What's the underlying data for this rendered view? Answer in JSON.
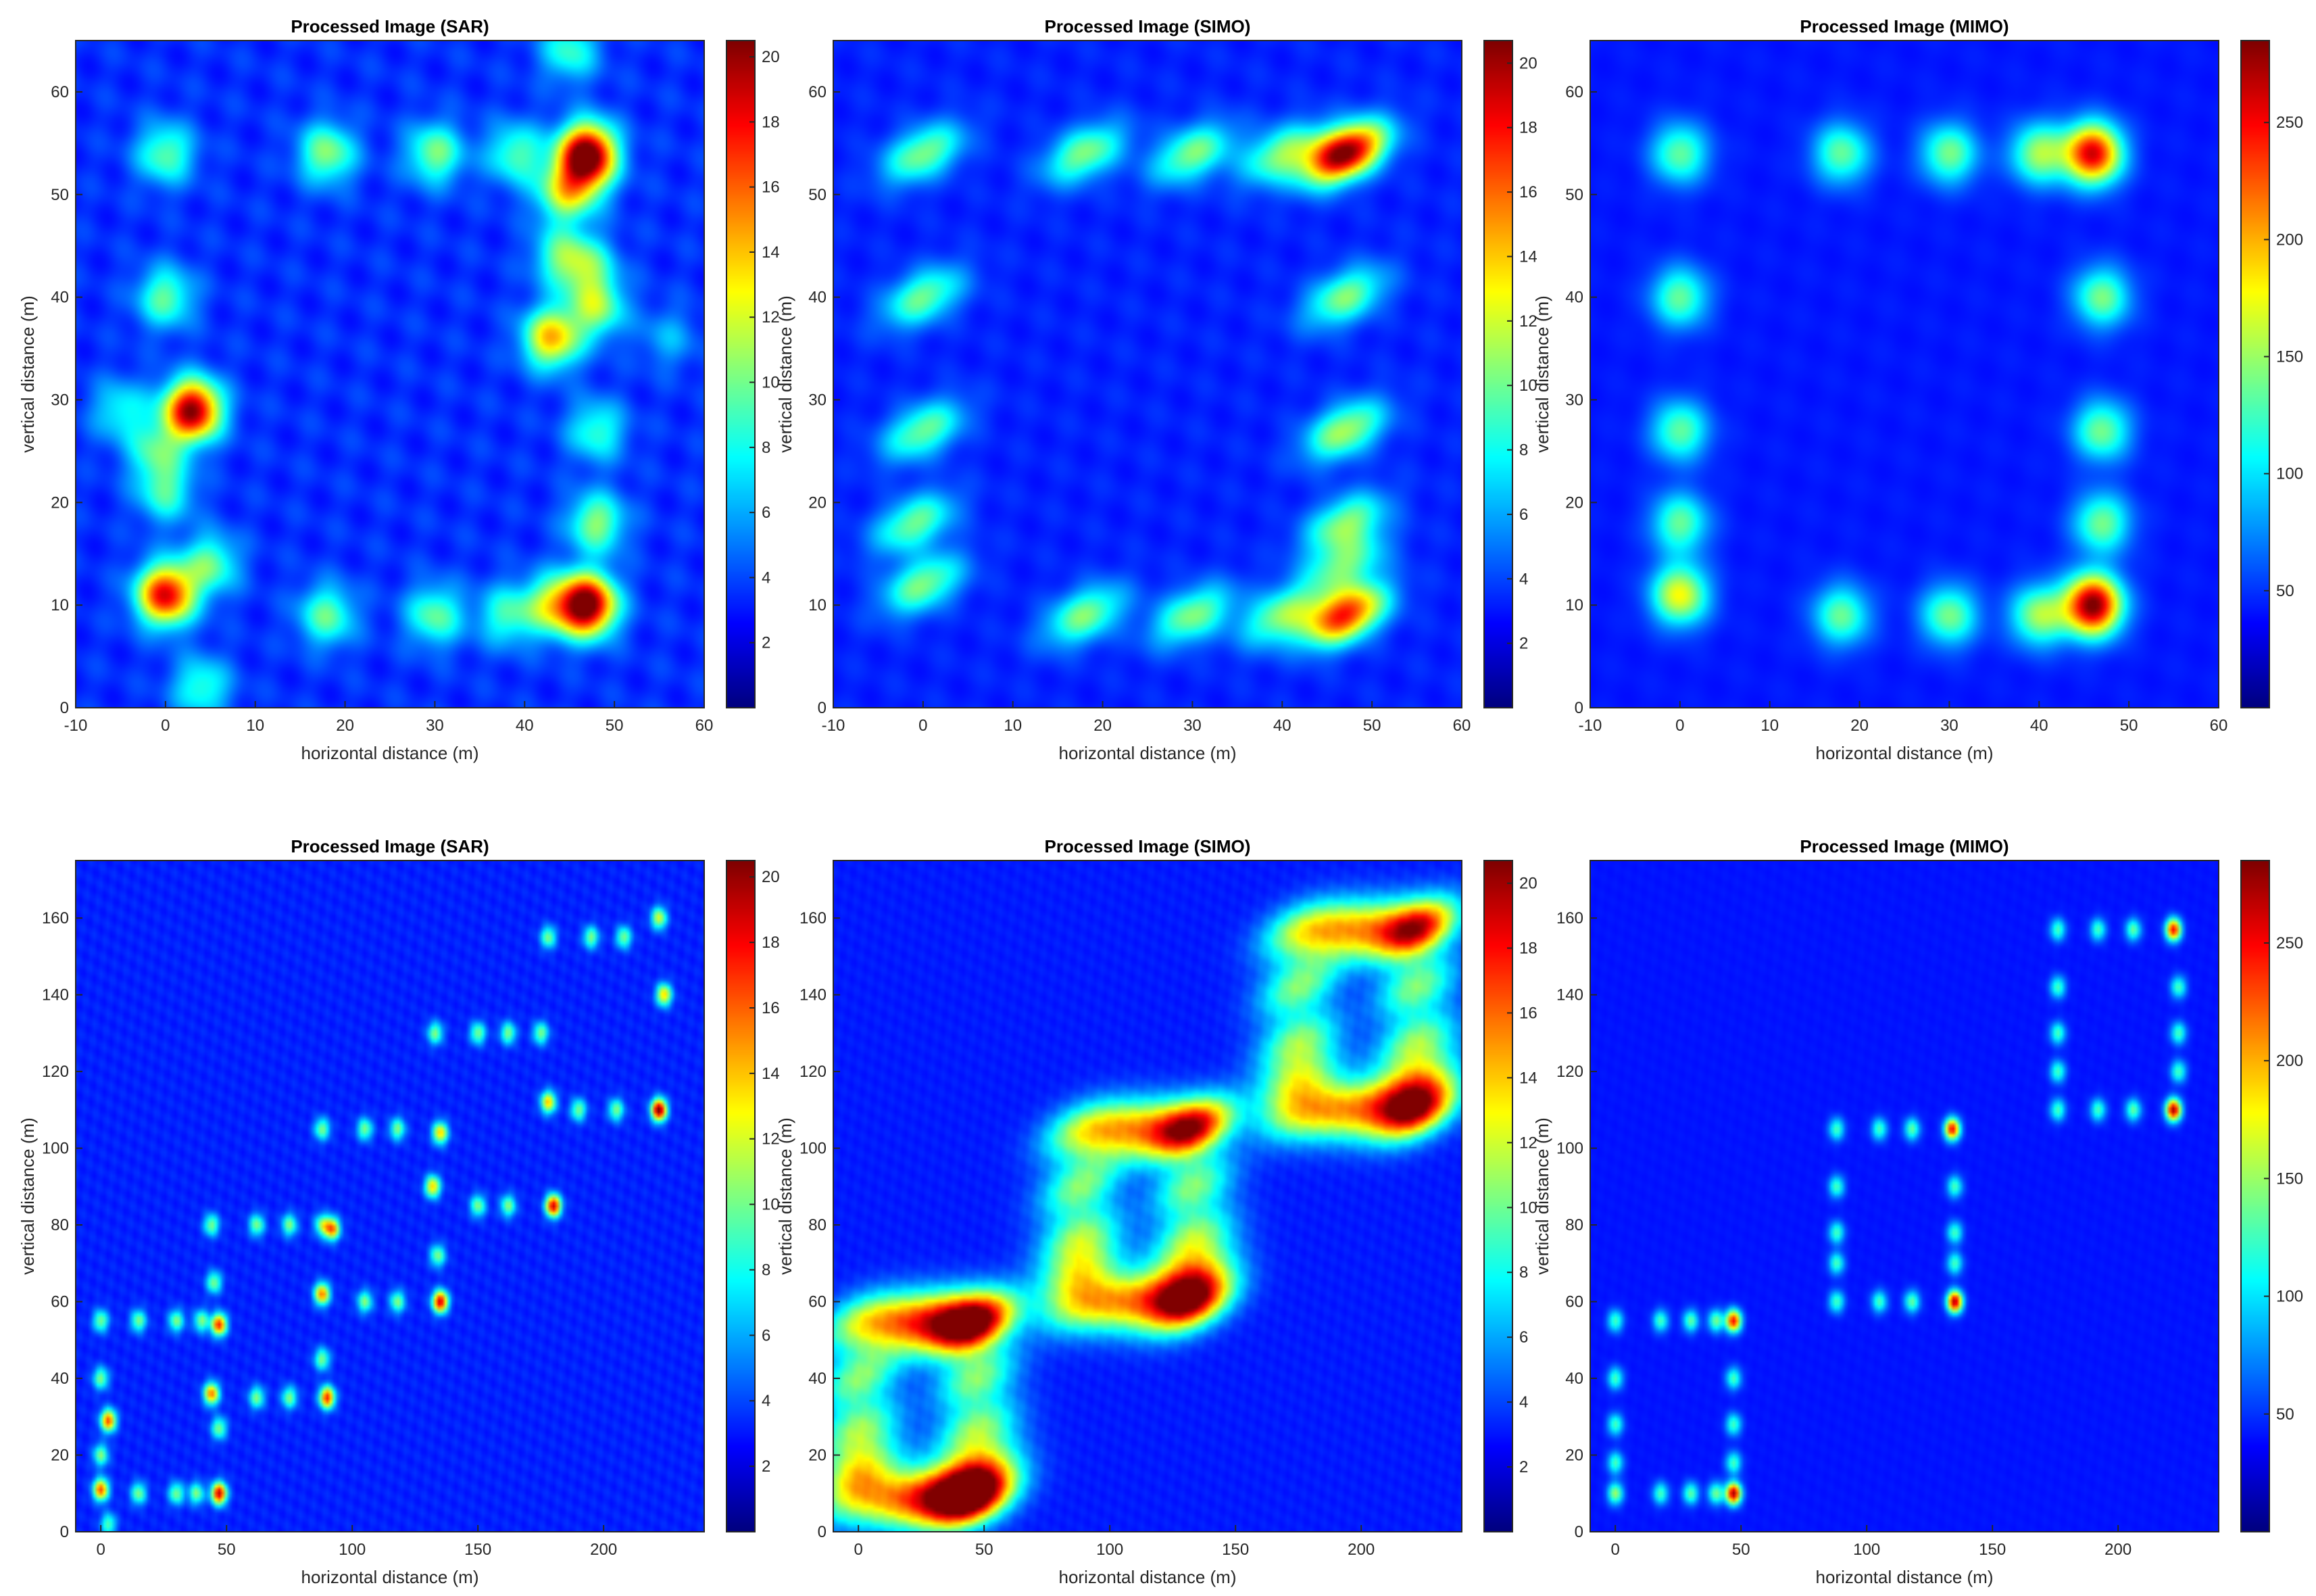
{
  "chart_data": [
    {
      "type": "heatmap",
      "title": "Processed Image (SAR)",
      "xlabel": "horizontal distance (m)",
      "ylabel": "vertical distance (m)",
      "xlim": [
        -10,
        60
      ],
      "ylim": [
        0,
        65
      ],
      "xticks": [
        -10,
        0,
        10,
        20,
        30,
        40,
        50,
        60
      ],
      "yticks": [
        0,
        10,
        20,
        30,
        40,
        50,
        60
      ],
      "colormap": "jet",
      "colorbar": {
        "min": 0,
        "max": 20.5,
        "ticks": [
          2,
          4,
          6,
          8,
          10,
          12,
          14,
          16,
          18,
          20
        ]
      },
      "spot_shape": "round",
      "points": [
        [
          0,
          54,
          0.35
        ],
        [
          18,
          54,
          0.4
        ],
        [
          30,
          54,
          0.38
        ],
        [
          39,
          54,
          0.33
        ],
        [
          47,
          54,
          1.0
        ],
        [
          46,
          51,
          0.3
        ],
        [
          44,
          50,
          0.3
        ],
        [
          0,
          40,
          0.35
        ],
        [
          43,
          36,
          0.6
        ],
        [
          48,
          39,
          0.4
        ],
        [
          44,
          44,
          0.3
        ],
        [
          47,
          43,
          0.3
        ],
        [
          -5,
          29,
          0.25
        ],
        [
          3,
          29,
          0.95
        ],
        [
          -1,
          25,
          0.3
        ],
        [
          48,
          27,
          0.3
        ],
        [
          0,
          21,
          0.3
        ],
        [
          48,
          18,
          0.4
        ],
        [
          0,
          11,
          0.85
        ],
        [
          5,
          14,
          0.35
        ],
        [
          18,
          9,
          0.35
        ],
        [
          30,
          9,
          0.35
        ],
        [
          38,
          9,
          0.3
        ],
        [
          47,
          10,
          1.0
        ],
        [
          43,
          10,
          0.4
        ],
        [
          4,
          2,
          0.3
        ],
        [
          45,
          64,
          0.3
        ],
        [
          56,
          36,
          0.15
        ]
      ],
      "noise": 0.2
    },
    {
      "type": "heatmap",
      "title": "Processed Image (SIMO)",
      "xlabel": "horizontal distance (m)",
      "ylabel": "vertical distance (m)",
      "xlim": [
        -10,
        60
      ],
      "ylim": [
        0,
        65
      ],
      "xticks": [
        -10,
        0,
        10,
        20,
        30,
        40,
        50,
        60
      ],
      "yticks": [
        0,
        10,
        20,
        30,
        40,
        50,
        60
      ],
      "colormap": "jet",
      "colorbar": {
        "min": 0,
        "max": 20.7,
        "ticks": [
          2,
          4,
          6,
          8,
          10,
          12,
          14,
          16,
          18,
          20
        ]
      },
      "spot_shape": "elongated",
      "points": [
        [
          0,
          54,
          0.4
        ],
        [
          18,
          54,
          0.4
        ],
        [
          30,
          54,
          0.4
        ],
        [
          40,
          54,
          0.4
        ],
        [
          47,
          54,
          1.0
        ],
        [
          0,
          40,
          0.38
        ],
        [
          47,
          40,
          0.4
        ],
        [
          0,
          27,
          0.38
        ],
        [
          47,
          27,
          0.45
        ],
        [
          -1,
          18,
          0.38
        ],
        [
          47,
          18,
          0.4
        ],
        [
          0,
          12,
          0.4
        ],
        [
          18,
          9,
          0.4
        ],
        [
          30,
          9,
          0.4
        ],
        [
          40,
          9,
          0.4
        ],
        [
          47,
          9,
          0.8
        ],
        [
          47,
          14,
          0.35
        ]
      ],
      "noise": 0.12
    },
    {
      "type": "heatmap",
      "title": "Processed Image (MIMO)",
      "xlabel": "horizontal distance (m)",
      "ylabel": "vertical distance (m)",
      "xlim": [
        -10,
        60
      ],
      "ylim": [
        0,
        65
      ],
      "xticks": [
        -10,
        0,
        10,
        20,
        30,
        40,
        50,
        60
      ],
      "yticks": [
        0,
        10,
        20,
        30,
        40,
        50,
        60
      ],
      "colormap": "jet",
      "colorbar": {
        "min": 0,
        "max": 285,
        "ticks": [
          50,
          100,
          150,
          200,
          250
        ]
      },
      "spot_shape": "round",
      "points": [
        [
          0,
          54,
          0.38
        ],
        [
          18,
          54,
          0.38
        ],
        [
          30,
          54,
          0.4
        ],
        [
          40,
          54,
          0.45
        ],
        [
          46,
          54,
          0.88
        ],
        [
          0,
          40,
          0.38
        ],
        [
          47,
          40,
          0.4
        ],
        [
          0,
          27,
          0.38
        ],
        [
          47,
          27,
          0.4
        ],
        [
          0,
          18,
          0.38
        ],
        [
          47,
          18,
          0.4
        ],
        [
          0,
          11,
          0.55
        ],
        [
          18,
          9,
          0.38
        ],
        [
          30,
          9,
          0.4
        ],
        [
          40,
          9,
          0.45
        ],
        [
          46,
          10,
          1.0
        ]
      ],
      "noise": 0.06
    },
    {
      "type": "heatmap",
      "title": "Processed Image (SAR)",
      "xlabel": "horizontal distance (m)",
      "ylabel": "vertical distance (m)",
      "xlim": [
        -10,
        240
      ],
      "ylim": [
        0,
        175
      ],
      "xticks": [
        0,
        50,
        100,
        150,
        200
      ],
      "yticks": [
        0,
        20,
        40,
        60,
        80,
        100,
        120,
        140,
        160
      ],
      "colormap": "jet",
      "colorbar": {
        "min": 0,
        "max": 20.5,
        "ticks": [
          2,
          4,
          6,
          8,
          10,
          12,
          14,
          16,
          18,
          20
        ]
      },
      "spot_shape": "small",
      "points": [
        [
          0,
          55,
          0.4
        ],
        [
          15,
          55,
          0.4
        ],
        [
          30,
          55,
          0.4
        ],
        [
          40,
          55,
          0.4
        ],
        [
          47,
          54,
          0.8
        ],
        [
          0,
          40,
          0.4
        ],
        [
          44,
          36,
          0.7
        ],
        [
          3,
          29,
          0.75
        ],
        [
          47,
          27,
          0.4
        ],
        [
          0,
          20,
          0.4
        ],
        [
          0,
          11,
          0.75
        ],
        [
          15,
          10,
          0.4
        ],
        [
          30,
          10,
          0.4
        ],
        [
          38,
          10,
          0.4
        ],
        [
          47,
          10,
          0.9
        ],
        [
          3,
          2,
          0.35
        ],
        [
          45,
          65,
          0.4
        ],
        [
          44,
          80,
          0.4
        ],
        [
          62,
          80,
          0.4
        ],
        [
          75,
          80,
          0.4
        ],
        [
          88,
          80,
          0.4
        ],
        [
          92,
          79,
          0.7
        ],
        [
          88,
          62,
          0.7
        ],
        [
          88,
          45,
          0.4
        ],
        [
          62,
          35,
          0.4
        ],
        [
          75,
          35,
          0.4
        ],
        [
          90,
          35,
          0.8
        ],
        [
          88,
          105,
          0.4
        ],
        [
          105,
          105,
          0.4
        ],
        [
          118,
          105,
          0.4
        ],
        [
          135,
          104,
          0.6
        ],
        [
          132,
          90,
          0.6
        ],
        [
          134,
          72,
          0.4
        ],
        [
          105,
          60,
          0.4
        ],
        [
          118,
          60,
          0.4
        ],
        [
          135,
          60,
          0.9
        ],
        [
          133,
          130,
          0.4
        ],
        [
          150,
          130,
          0.4
        ],
        [
          162,
          130,
          0.4
        ],
        [
          175,
          130,
          0.4
        ],
        [
          178,
          112,
          0.6
        ],
        [
          180,
          85,
          0.9
        ],
        [
          150,
          85,
          0.4
        ],
        [
          162,
          85,
          0.4
        ],
        [
          178,
          155,
          0.4
        ],
        [
          195,
          155,
          0.4
        ],
        [
          208,
          155,
          0.4
        ],
        [
          222,
          160,
          0.5
        ],
        [
          224,
          140,
          0.6
        ],
        [
          222,
          110,
          1.0
        ],
        [
          205,
          110,
          0.4
        ],
        [
          190,
          110,
          0.4
        ]
      ],
      "noise": 0.12
    },
    {
      "type": "heatmap",
      "title": "Processed Image (SIMO)",
      "xlabel": "horizontal distance (m)",
      "ylabel": "vertical distance (m)",
      "xlim": [
        -10,
        240
      ],
      "ylim": [
        0,
        175
      ],
      "xticks": [
        0,
        50,
        100,
        150,
        200
      ],
      "yticks": [
        0,
        20,
        40,
        60,
        80,
        100,
        120,
        140,
        160
      ],
      "colormap": "jet",
      "colorbar": {
        "min": 0,
        "max": 20.7,
        "ticks": [
          2,
          4,
          6,
          8,
          10,
          12,
          14,
          16,
          18,
          20
        ]
      },
      "spot_shape": "elongated",
      "points": [
        [
          0,
          55,
          0.4
        ],
        [
          15,
          55,
          0.4
        ],
        [
          28,
          55,
          0.4
        ],
        [
          38,
          55,
          0.4
        ],
        [
          47,
          54,
          0.9
        ],
        [
          0,
          40,
          0.4
        ],
        [
          47,
          40,
          0.4
        ],
        [
          0,
          27,
          0.4
        ],
        [
          47,
          27,
          0.4
        ],
        [
          0,
          17,
          0.4
        ],
        [
          47,
          17,
          0.4
        ],
        [
          0,
          10,
          0.4
        ],
        [
          15,
          9,
          0.4
        ],
        [
          28,
          9,
          0.4
        ],
        [
          38,
          9,
          0.4
        ],
        [
          47,
          9,
          0.9
        ],
        [
          88,
          105,
          0.4
        ],
        [
          103,
          105,
          0.4
        ],
        [
          118,
          105,
          0.4
        ],
        [
          133,
          105,
          0.9
        ],
        [
          88,
          90,
          0.4
        ],
        [
          133,
          90,
          0.4
        ],
        [
          88,
          77,
          0.4
        ],
        [
          133,
          77,
          0.4
        ],
        [
          88,
          68,
          0.4
        ],
        [
          133,
          68,
          0.4
        ],
        [
          88,
          60,
          0.4
        ],
        [
          103,
          60,
          0.4
        ],
        [
          118,
          60,
          0.4
        ],
        [
          133,
          60,
          0.9
        ],
        [
          175,
          157,
          0.4
        ],
        [
          190,
          157,
          0.4
        ],
        [
          205,
          157,
          0.4
        ],
        [
          222,
          157,
          0.9
        ],
        [
          175,
          142,
          0.4
        ],
        [
          222,
          142,
          0.4
        ],
        [
          175,
          128,
          0.4
        ],
        [
          222,
          128,
          0.4
        ],
        [
          175,
          118,
          0.4
        ],
        [
          222,
          118,
          0.4
        ],
        [
          175,
          110,
          0.4
        ],
        [
          190,
          110,
          0.4
        ],
        [
          205,
          110,
          0.4
        ],
        [
          222,
          110,
          0.9
        ]
      ],
      "noise": 0.08
    },
    {
      "type": "heatmap",
      "title": "Processed Image (MIMO)",
      "xlabel": "horizontal distance (m)",
      "ylabel": "vertical distance (m)",
      "xlim": [
        -10,
        240
      ],
      "ylim": [
        0,
        175
      ],
      "xticks": [
        0,
        50,
        100,
        150,
        200
      ],
      "yticks": [
        0,
        20,
        40,
        60,
        80,
        100,
        120,
        140,
        160
      ],
      "colormap": "jet",
      "colorbar": {
        "min": 0,
        "max": 285,
        "ticks": [
          50,
          100,
          150,
          200,
          250
        ]
      },
      "spot_shape": "small",
      "points": [
        [
          0,
          55,
          0.35
        ],
        [
          18,
          55,
          0.35
        ],
        [
          30,
          55,
          0.38
        ],
        [
          40,
          55,
          0.4
        ],
        [
          47,
          55,
          0.85
        ],
        [
          0,
          40,
          0.35
        ],
        [
          47,
          40,
          0.35
        ],
        [
          0,
          28,
          0.35
        ],
        [
          47,
          28,
          0.35
        ],
        [
          0,
          18,
          0.35
        ],
        [
          47,
          18,
          0.35
        ],
        [
          0,
          10,
          0.45
        ],
        [
          18,
          10,
          0.35
        ],
        [
          30,
          10,
          0.38
        ],
        [
          40,
          10,
          0.4
        ],
        [
          47,
          10,
          0.95
        ],
        [
          88,
          105,
          0.35
        ],
        [
          105,
          105,
          0.35
        ],
        [
          118,
          105,
          0.38
        ],
        [
          134,
          105,
          0.85
        ],
        [
          88,
          90,
          0.35
        ],
        [
          135,
          90,
          0.35
        ],
        [
          88,
          78,
          0.35
        ],
        [
          135,
          78,
          0.35
        ],
        [
          88,
          70,
          0.35
        ],
        [
          135,
          70,
          0.35
        ],
        [
          88,
          60,
          0.35
        ],
        [
          105,
          60,
          0.35
        ],
        [
          118,
          60,
          0.38
        ],
        [
          135,
          60,
          0.95
        ],
        [
          176,
          157,
          0.35
        ],
        [
          192,
          157,
          0.35
        ],
        [
          206,
          157,
          0.38
        ],
        [
          222,
          157,
          0.85
        ],
        [
          176,
          142,
          0.35
        ],
        [
          224,
          142,
          0.35
        ],
        [
          176,
          130,
          0.35
        ],
        [
          224,
          130,
          0.35
        ],
        [
          176,
          120,
          0.35
        ],
        [
          224,
          120,
          0.35
        ],
        [
          176,
          110,
          0.35
        ],
        [
          192,
          110,
          0.35
        ],
        [
          206,
          110,
          0.38
        ],
        [
          222,
          110,
          0.95
        ]
      ],
      "noise": 0.04
    }
  ]
}
